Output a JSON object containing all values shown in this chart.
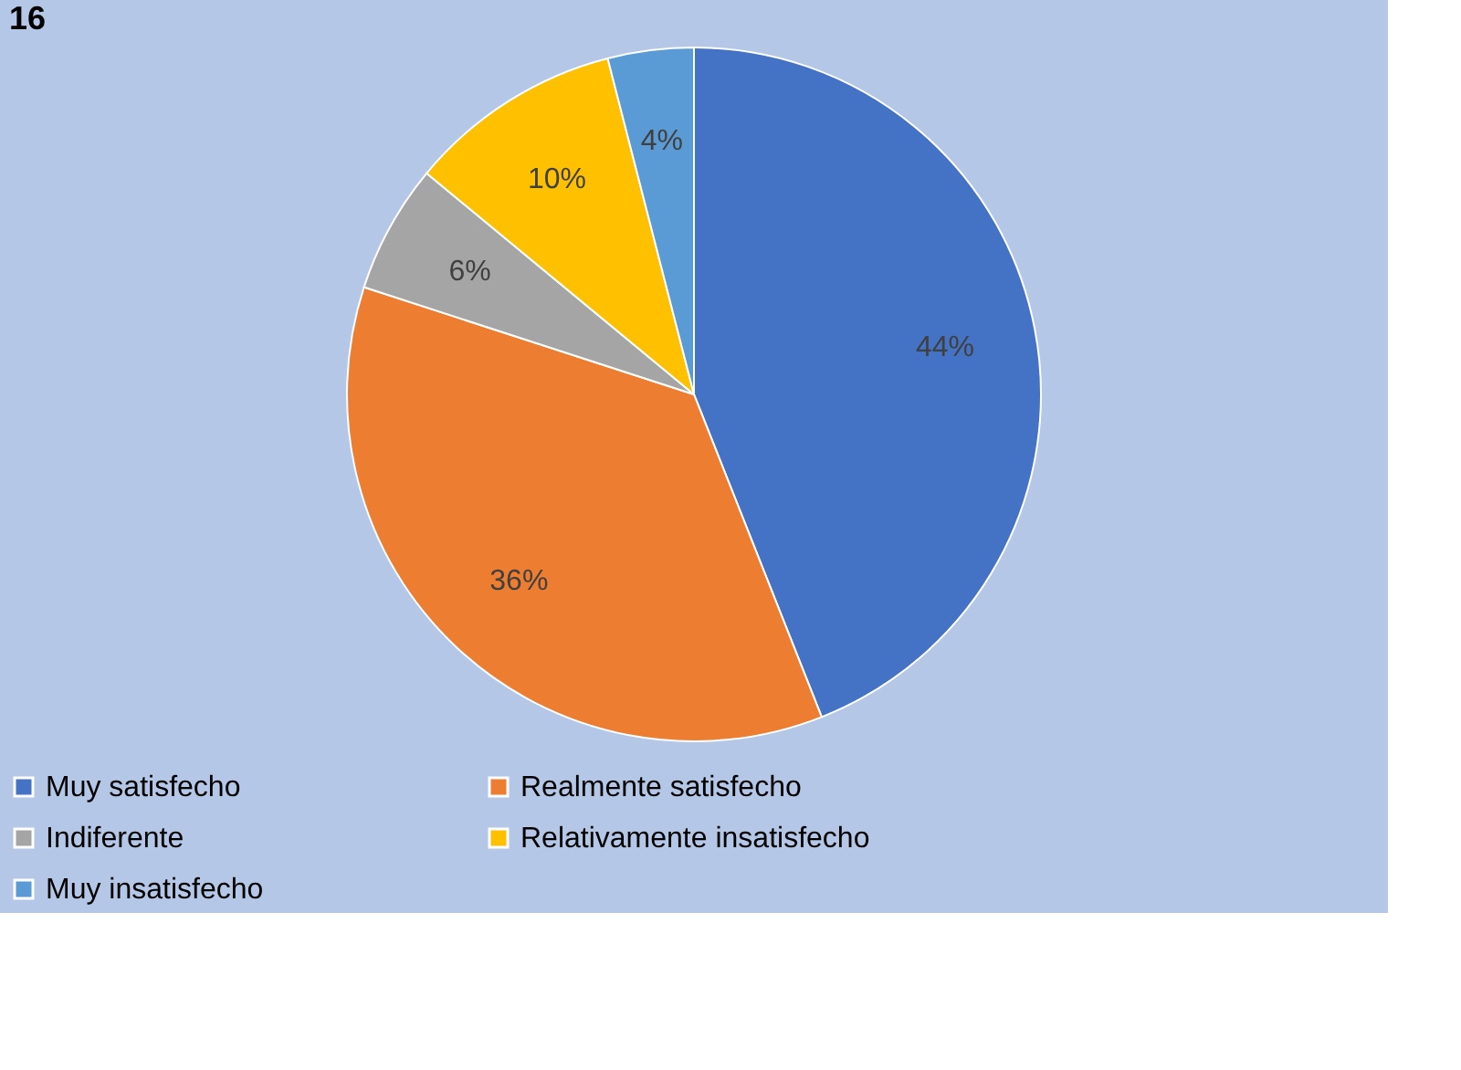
{
  "chart_data": {
    "type": "pie",
    "title": "16",
    "categories": [
      "Muy satisfecho",
      "Realmente satisfecho",
      "Indiferente",
      "Relativamente insatisfecho",
      "Muy insatisfecho"
    ],
    "values": [
      44,
      36,
      6,
      10,
      4
    ],
    "colors": [
      "#4472c4",
      "#ed7d31",
      "#a5a5a5",
      "#ffc000",
      "#5b9bd5"
    ],
    "value_labels": [
      "44%",
      "36%",
      "6%",
      "10%",
      "4%"
    ],
    "legend": "bottom"
  }
}
